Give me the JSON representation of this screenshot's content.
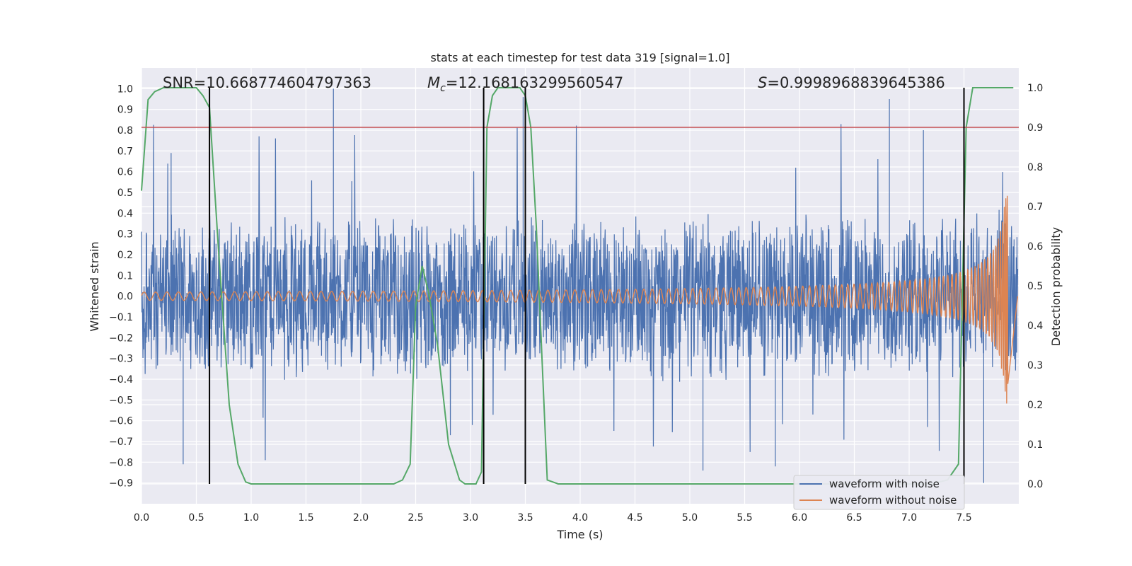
{
  "chart_data": {
    "type": "line",
    "title": "stats at each timestep for test data 319 [signal=1.0]",
    "xlabel": "Time (s)",
    "ylabel_left": "Whitened strain",
    "ylabel_right": "Detection probability",
    "xlim": [
      0.0,
      8.0
    ],
    "ylim_left": [
      -1.0,
      1.1
    ],
    "ylim_right": [
      -0.05,
      1.05
    ],
    "x_ticks": [
      "0.0",
      "0.5",
      "1.0",
      "1.5",
      "2.0",
      "2.5",
      "3.0",
      "3.5",
      "4.0",
      "4.5",
      "5.0",
      "5.5",
      "6.0",
      "6.5",
      "7.0",
      "7.5"
    ],
    "y_left_ticks": [
      "1.0",
      "0.9",
      "0.8",
      "0.7",
      "0.6",
      "0.5",
      "0.4",
      "0.3",
      "0.2",
      "0.1",
      "0.0",
      "−0.1",
      "−0.2",
      "−0.3",
      "−0.4",
      "−0.5",
      "−0.6",
      "−0.7",
      "−0.8",
      "−0.9"
    ],
    "y_right_ticks": [
      "1.0",
      "0.9",
      "0.8",
      "0.7",
      "0.6",
      "0.5",
      "0.4",
      "0.3",
      "0.2",
      "0.1",
      "0.0"
    ],
    "annotations": {
      "snr": "SNR=10.668774604797363",
      "mc_symbol": "M",
      "mc_subscript": "c",
      "mc_value": "=12.168163299560547",
      "s_symbol": "S",
      "s_value": "=0.9998968839645386"
    },
    "threshold_right": 0.9,
    "vertical_lines_x": [
      0.62,
      3.12,
      3.5,
      7.5
    ],
    "series": [
      {
        "name": "waveform with noise",
        "color": "#4c72b0",
        "noise_envelope": 0.42,
        "peak_range": [
          -0.84,
          1.0
        ]
      },
      {
        "name": "waveform without noise",
        "color": "#dd8452",
        "chirp_start_amplitude": 0.02,
        "chirp_end_amplitude": 0.52,
        "chirp_end_time": 7.9
      },
      {
        "name": "detection probability",
        "color": "#55a868",
        "x": [
          0.0,
          0.06,
          0.12,
          0.2,
          0.3,
          0.4,
          0.5,
          0.56,
          0.62,
          0.7,
          0.8,
          0.88,
          0.95,
          1.0,
          1.5,
          2.0,
          2.3,
          2.38,
          2.45,
          2.5,
          2.56,
          2.62,
          2.7,
          2.8,
          2.9,
          2.95,
          3.0,
          3.05,
          3.1,
          3.15,
          3.2,
          3.25,
          3.3,
          3.45,
          3.5,
          3.55,
          3.6,
          3.7,
          3.75,
          3.8,
          4.5,
          5.5,
          6.5,
          7.2,
          7.35,
          7.45,
          7.52,
          7.58,
          7.65,
          7.7,
          7.95
        ],
        "values": [
          0.74,
          0.97,
          0.99,
          1.0,
          1.0,
          1.0,
          1.0,
          0.98,
          0.95,
          0.6,
          0.2,
          0.05,
          0.005,
          0.0,
          0.0,
          0.0,
          0.0,
          0.01,
          0.05,
          0.45,
          0.55,
          0.48,
          0.35,
          0.1,
          0.01,
          0.0,
          0.0,
          0.0,
          0.03,
          0.9,
          0.98,
          1.0,
          1.0,
          1.0,
          0.98,
          0.9,
          0.65,
          0.01,
          0.005,
          0.0,
          0.0,
          0.0,
          0.0,
          0.0,
          0.01,
          0.05,
          0.9,
          1.0,
          1.0,
          1.0,
          1.0
        ]
      }
    ],
    "legend_position": "lower-right"
  }
}
